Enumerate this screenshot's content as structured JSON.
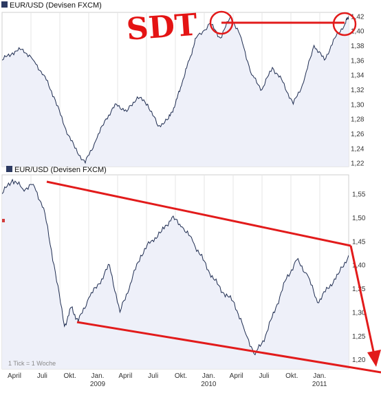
{
  "colors": {
    "line": "#1e2c50",
    "area": "#eef0f9",
    "annotation": "#e21b1b",
    "grid": "#e6e6e6",
    "border": "#cfcfcf"
  },
  "scribble": "SDT",
  "chart_data": [
    {
      "type": "line",
      "title": "EUR/USD (Devisen FXCM)",
      "yticks": [
        "1,42",
        "1,40",
        "1,38",
        "1,36",
        "1,34",
        "1,32",
        "1,30",
        "1,28",
        "1,26",
        "1,24",
        "1,22"
      ],
      "ylim": [
        1.215,
        1.425
      ],
      "xlim": [
        0,
        1
      ],
      "grid": "vertical",
      "series": [
        {
          "x": [
            0.0,
            0.03,
            0.06,
            0.09,
            0.12,
            0.15,
            0.18,
            0.21,
            0.24,
            0.27,
            0.3,
            0.33,
            0.36,
            0.39,
            0.42,
            0.45,
            0.48,
            0.5,
            0.52,
            0.54,
            0.56,
            0.6,
            0.63,
            0.66,
            0.69,
            0.72,
            0.75,
            0.78,
            0.81,
            0.84,
            0.87,
            0.9,
            0.93,
            0.96,
            0.99,
            1.0
          ],
          "y": [
            1.36,
            1.37,
            1.375,
            1.36,
            1.34,
            1.31,
            1.27,
            1.24,
            1.22,
            1.25,
            1.28,
            1.3,
            1.29,
            1.31,
            1.3,
            1.27,
            1.28,
            1.3,
            1.33,
            1.36,
            1.39,
            1.41,
            1.39,
            1.42,
            1.39,
            1.34,
            1.32,
            1.35,
            1.33,
            1.3,
            1.33,
            1.38,
            1.36,
            1.39,
            1.41,
            1.42
          ]
        }
      ]
    },
    {
      "type": "line",
      "title": "EUR/USD (Devisen FXCM)",
      "note": "1 Tick = 1 Woche",
      "yticks": [
        "1,55",
        "1,50",
        "1,45",
        "1,40",
        "1,35",
        "1,30",
        "1,25",
        "1,20"
      ],
      "ylim": [
        1.18,
        1.59
      ],
      "categories": [
        "April",
        "Juli",
        "Okt.",
        "Jan.",
        "April",
        "Juli",
        "Okt.",
        "Jan.",
        "April",
        "Juli",
        "Okt.",
        "Jan."
      ],
      "year_labels": [
        "2009",
        "2010",
        "2011"
      ],
      "grid": "vertical",
      "series": [
        {
          "x": [
            0.0,
            0.03,
            0.06,
            0.09,
            0.12,
            0.15,
            0.18,
            0.2,
            0.22,
            0.25,
            0.28,
            0.31,
            0.34,
            0.37,
            0.4,
            0.43,
            0.46,
            0.49,
            0.52,
            0.55,
            0.58,
            0.61,
            0.64,
            0.67,
            0.7,
            0.73,
            0.76,
            0.79,
            0.82,
            0.85,
            0.88,
            0.91,
            0.94,
            0.97,
            1.0
          ],
          "y": [
            1.55,
            1.58,
            1.56,
            1.57,
            1.52,
            1.4,
            1.27,
            1.31,
            1.28,
            1.33,
            1.36,
            1.4,
            1.3,
            1.36,
            1.42,
            1.45,
            1.47,
            1.5,
            1.48,
            1.45,
            1.41,
            1.37,
            1.34,
            1.32,
            1.26,
            1.21,
            1.25,
            1.31,
            1.37,
            1.41,
            1.38,
            1.32,
            1.35,
            1.38,
            1.42
          ]
        }
      ]
    }
  ]
}
